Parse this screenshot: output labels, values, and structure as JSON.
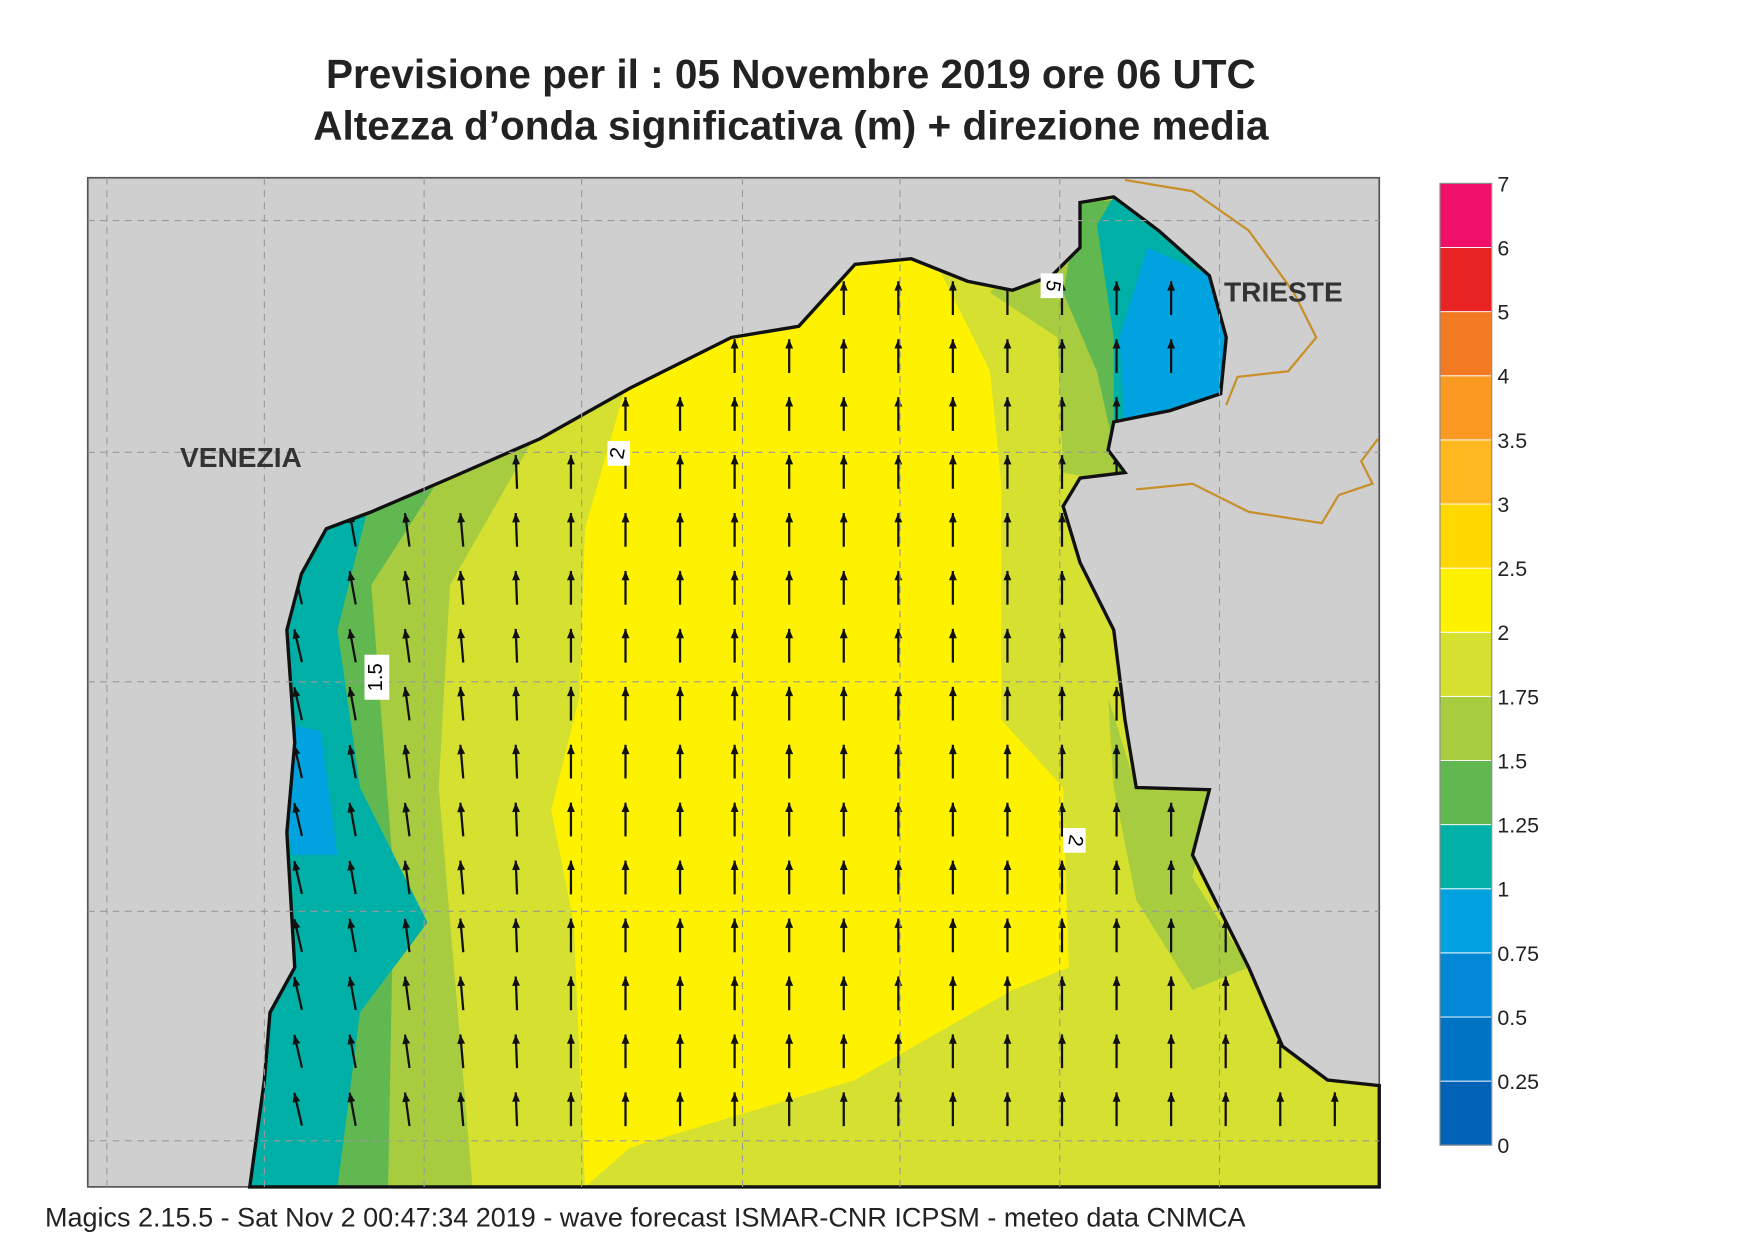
{
  "header": {
    "title": "Previsione per il  :  05 Novembre  2019   ore 06 UTC",
    "subtitle": "Altezza d’onda significativa (m) + direzione media"
  },
  "map": {
    "cities": [
      "VENEZIA",
      "TRIESTE"
    ],
    "contour_labels": [
      "2",
      "1.5",
      "2",
      "5"
    ]
  },
  "colorbar": {
    "ticks": [
      "0",
      "0.25",
      "0.5",
      "0.75",
      "1",
      "1.25",
      "1.5",
      "1.75",
      "2",
      "2.5",
      "3",
      "3.5",
      "4",
      "5",
      "6",
      "7"
    ],
    "colors": [
      "#0062b4",
      "#0074c4",
      "#0088d4",
      "#00a2e0",
      "#00b0a6",
      "#62b850",
      "#a8cc40",
      "#d6e030",
      "#fff200",
      "#ffd800",
      "#ffb820",
      "#fb9a22",
      "#f27a22",
      "#e82424",
      "#f0106a"
    ]
  },
  "footer": "Magics 2.15.5 - Sat Nov  2 00:47:34 2019 - wave forecast  ISMAR-CNR  ICPSM - meteo data   CNMCA"
}
